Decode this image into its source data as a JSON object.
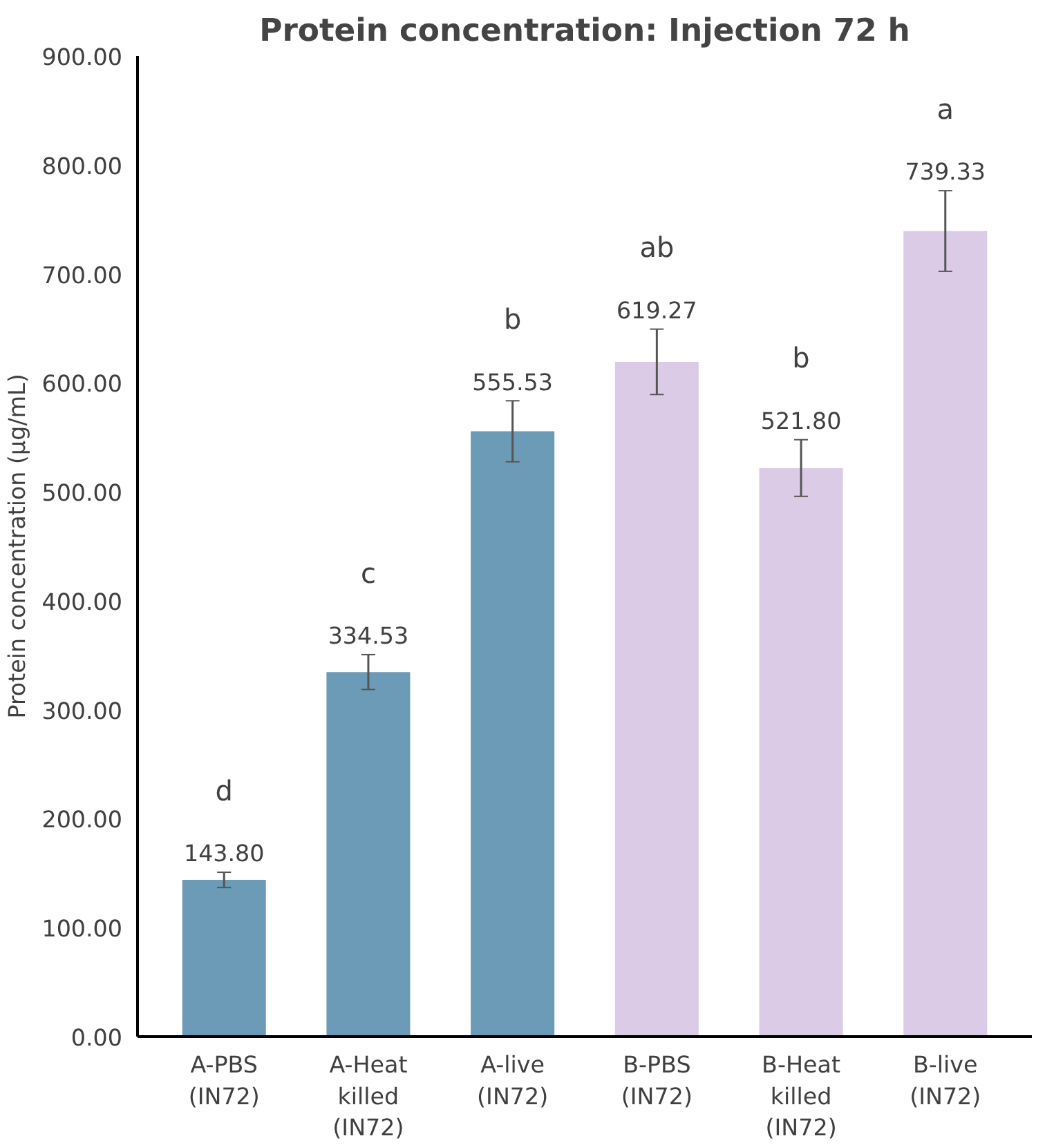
{
  "chart_data": {
    "type": "bar",
    "title": "Protein concentration: Injection 72 h",
    "ylabel": "Protein concentration (µg/mL)",
    "categories": [
      "A-PBS (IN72)",
      "A-Heat killed (IN72)",
      "A-live (IN72)",
      "B-PBS (IN72)",
      "B-Heat killed (IN72)",
      "B-live (IN72)"
    ],
    "values": [
      143.8,
      334.53,
      555.53,
      619.27,
      521.8,
      739.33
    ],
    "colors": [
      "#6b9bb6",
      "#6b9bb6",
      "#6b9bb6",
      "#dccbe6",
      "#dccbe6",
      "#dccbe6"
    ],
    "errors": [
      7,
      16,
      28,
      30,
      26,
      37
    ],
    "value_labels": [
      "143.80",
      "334.53",
      "555.53",
      "619.27",
      "521.80",
      "739.33"
    ],
    "annotations": [
      "d",
      "c",
      "b",
      "ab",
      "b",
      "a"
    ],
    "ylim": [
      0,
      900
    ],
    "yticks": [
      {
        "value": 0,
        "label": "0.00"
      },
      {
        "value": 100,
        "label": "100.00"
      },
      {
        "value": 200,
        "label": "200.00"
      },
      {
        "value": 300,
        "label": "300.00"
      },
      {
        "value": 400,
        "label": "400.00"
      },
      {
        "value": 500,
        "label": "500.00"
      },
      {
        "value": 600,
        "label": "600.00"
      },
      {
        "value": 700,
        "label": "700.00"
      },
      {
        "value": 800,
        "label": "800.00"
      },
      {
        "value": 900,
        "label": "900.00"
      }
    ],
    "grid": false
  }
}
